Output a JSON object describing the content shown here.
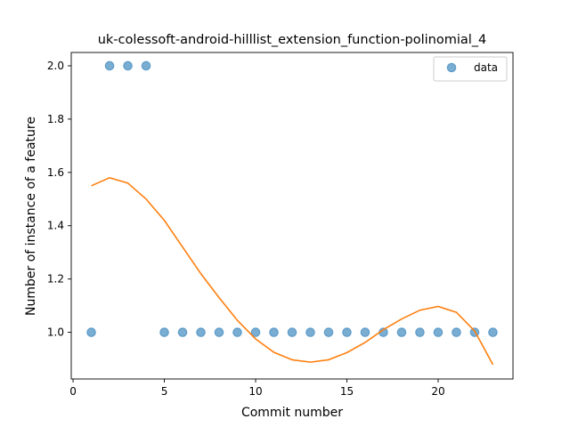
{
  "chart_data": {
    "type": "scatter",
    "title": "uk-colessoft-android-hilllist_extension_function-polinomial_4",
    "xlabel": "Commit number",
    "ylabel": "Number of instance of a feature",
    "xlim": [
      -0.1,
      24.1
    ],
    "ylim": [
      0.825,
      2.05
    ],
    "xticks": [
      0,
      5,
      10,
      15,
      20
    ],
    "xtick_labels": [
      "0",
      "5",
      "10",
      "15",
      "20"
    ],
    "yticks": [
      1.0,
      1.2,
      1.4,
      1.6,
      1.8,
      2.0
    ],
    "ytick_labels": [
      "1.0",
      "1.2",
      "1.4",
      "1.6",
      "1.8",
      "2.0"
    ],
    "legend": {
      "position": "top-right",
      "entries": [
        "data"
      ]
    },
    "grid": false,
    "colors": {
      "scatter": "#1f77b4",
      "fit": "#ff7f0e"
    },
    "series": [
      {
        "name": "data",
        "kind": "scatter",
        "x": [
          1,
          2,
          3,
          4,
          5,
          6,
          7,
          8,
          9,
          10,
          11,
          12,
          13,
          14,
          15,
          16,
          17,
          18,
          19,
          20,
          21,
          22,
          23
        ],
        "y": [
          1,
          2,
          2,
          2,
          1,
          1,
          1,
          1,
          1,
          1,
          1,
          1,
          1,
          1,
          1,
          1,
          1,
          1,
          1,
          1,
          1,
          1,
          1
        ]
      },
      {
        "kind": "line",
        "x": [
          1,
          2,
          3,
          4,
          5,
          6,
          7,
          8,
          9,
          10,
          11,
          12,
          13,
          14,
          15,
          16,
          17,
          18,
          19,
          20,
          21,
          22,
          23
        ],
        "y": [
          1.55,
          1.58,
          1.56,
          1.5,
          1.42,
          1.32,
          1.22,
          1.13,
          1.045,
          0.975,
          0.925,
          0.897,
          0.888,
          0.897,
          0.924,
          0.962,
          1.01,
          1.05,
          1.083,
          1.097,
          1.075,
          1.005,
          0.879
        ]
      }
    ]
  }
}
